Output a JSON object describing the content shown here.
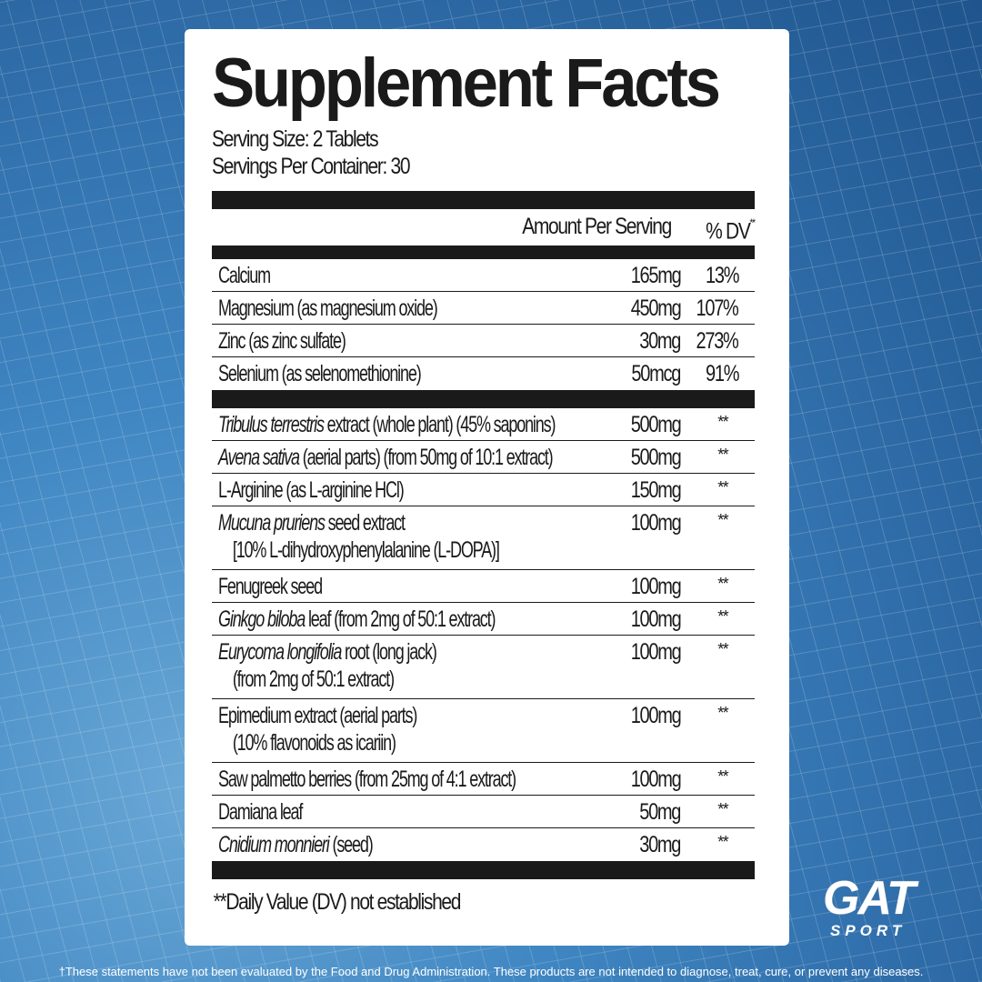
{
  "title": "Supplement Facts",
  "serving_size": "Serving Size: 2 Tablets",
  "servings_per_container": "Servings Per Container: 30",
  "header": {
    "amount": "Amount Per Serving",
    "dv": "% DV",
    "dv_mark": "**"
  },
  "minerals": [
    {
      "name": [
        {
          "text": "Calcium"
        }
      ],
      "amount": "165mg",
      "dv": "13%"
    },
    {
      "name": [
        {
          "text": "Magnesium (as magnesium oxide)"
        }
      ],
      "amount": "450mg",
      "dv": "107%"
    },
    {
      "name": [
        {
          "text": "Zinc (as zinc sulfate)"
        }
      ],
      "amount": "30mg",
      "dv": "273%"
    },
    {
      "name": [
        {
          "text": "Selenium (as selenomethionine)"
        }
      ],
      "amount": "50mcg",
      "dv": "91%"
    }
  ],
  "botanicals": [
    {
      "name": [
        {
          "text": "Tribulus terrestris",
          "italic": true
        },
        {
          "text": " extract (whole plant) (45% saponins)"
        }
      ],
      "amount": "500mg",
      "dv": "**"
    },
    {
      "name": [
        {
          "text": "Avena sativa",
          "italic": true
        },
        {
          "text": " (aerial parts) (from 50mg of 10:1 extract)"
        }
      ],
      "amount": "500mg",
      "dv": "**"
    },
    {
      "name": [
        {
          "text": "L-Arginine (as L-arginine HCl)"
        }
      ],
      "amount": "150mg",
      "dv": "**"
    },
    {
      "name": [
        {
          "text": "Mucuna pruriens",
          "italic": true
        },
        {
          "text": " seed extract"
        }
      ],
      "sub": "[10% L-dihydroxyphenylalanine (L-DOPA)]",
      "amount": "100mg",
      "dv": "**"
    },
    {
      "name": [
        {
          "text": "Fenugreek seed"
        }
      ],
      "amount": "100mg",
      "dv": "**"
    },
    {
      "name": [
        {
          "text": "Ginkgo biloba",
          "italic": true
        },
        {
          "text": " leaf (from 2mg of 50:1 extract)"
        }
      ],
      "amount": "100mg",
      "dv": "**"
    },
    {
      "name": [
        {
          "text": "Eurycoma longifolia",
          "italic": true
        },
        {
          "text": " root (long jack)"
        }
      ],
      "sub": "(from 2mg of 50:1 extract)",
      "amount": "100mg",
      "dv": "**"
    },
    {
      "name": [
        {
          "text": "Epimedium extract (aerial parts)"
        }
      ],
      "sub": "(10% flavonoids as icariin)",
      "amount": "100mg",
      "dv": "**"
    },
    {
      "name": [
        {
          "text": "Saw palmetto berries (from 25mg of 4:1 extract)"
        }
      ],
      "amount": "100mg",
      "dv": "**"
    },
    {
      "name": [
        {
          "text": "Damiana leaf"
        }
      ],
      "amount": "50mg",
      "dv": "**"
    },
    {
      "name": [
        {
          "text": "Cnidium monnieri",
          "italic": true
        },
        {
          "text": " (seed)"
        }
      ],
      "amount": "30mg",
      "dv": "**"
    }
  ],
  "footnote": "**Daily Value (DV) not established",
  "disclaimer": "†These statements have not been evaluated by the Food and Drug Administration. These products are not intended to diagnose, treat, cure, or prevent any diseases.",
  "logo": {
    "main": "GAT",
    "sub": "SPORT"
  }
}
